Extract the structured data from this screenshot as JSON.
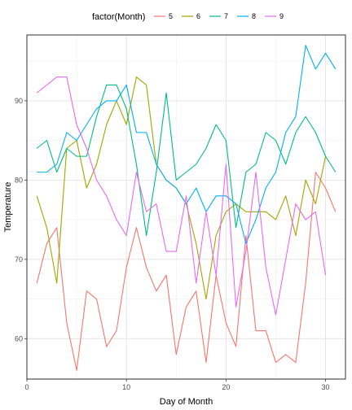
{
  "chart_data": {
    "type": "line",
    "xlabel": "Day of Month",
    "ylabel": "Temperature",
    "xlim": [
      0,
      32
    ],
    "ylim": [
      54.9,
      98.3
    ],
    "x_ticks": [
      0,
      10,
      20,
      30
    ],
    "y_ticks": [
      60,
      70,
      80,
      90
    ],
    "grid": true,
    "legend": {
      "title": "factor(Month)",
      "position": "top"
    },
    "series": [
      {
        "name": "5",
        "color": "#F8766D",
        "x": [
          1,
          2,
          3,
          4,
          5,
          6,
          7,
          8,
          9,
          10,
          11,
          12,
          13,
          14,
          15,
          16,
          17,
          18,
          19,
          20,
          21,
          22,
          23,
          24,
          25,
          26,
          27,
          28,
          29,
          30,
          31
        ],
        "values": [
          67,
          72,
          74,
          62,
          56,
          66,
          65,
          59,
          61,
          69,
          74,
          69,
          66,
          68,
          58,
          64,
          66,
          57,
          68,
          62,
          59,
          73,
          61,
          61,
          57,
          58,
          57,
          67,
          81,
          79,
          76
        ]
      },
      {
        "name": "6",
        "color": "#A3A500",
        "x": [
          1,
          2,
          3,
          4,
          5,
          6,
          7,
          8,
          9,
          10,
          11,
          12,
          13,
          14,
          15,
          16,
          17,
          18,
          19,
          20,
          21,
          22,
          23,
          24,
          25,
          26,
          27,
          28,
          29,
          30
        ],
        "values": [
          78,
          74,
          67,
          84,
          85,
          79,
          82,
          87,
          90,
          87,
          93,
          92,
          82,
          80,
          79,
          77,
          72,
          65,
          73,
          76,
          77,
          76,
          76,
          76,
          75,
          78,
          73,
          80,
          77,
          83
        ]
      },
      {
        "name": "7",
        "color": "#00BF7D",
        "x": [
          1,
          2,
          3,
          4,
          5,
          6,
          7,
          8,
          9,
          10,
          11,
          12,
          13,
          14,
          15,
          16,
          17,
          18,
          19,
          20,
          21,
          22,
          23,
          24,
          25,
          26,
          27,
          28,
          29,
          30,
          31
        ],
        "values": [
          84,
          85,
          81,
          84,
          83,
          83,
          88,
          92,
          92,
          89,
          82,
          73,
          81,
          91,
          80,
          81,
          82,
          84,
          87,
          85,
          74,
          81,
          82,
          86,
          85,
          82,
          86,
          88,
          86,
          83,
          81
        ]
      },
      {
        "name": "8",
        "color": "#00B0F6",
        "x": [
          1,
          2,
          3,
          4,
          5,
          6,
          7,
          8,
          9,
          10,
          11,
          12,
          13,
          14,
          15,
          16,
          17,
          18,
          19,
          20,
          21,
          22,
          23,
          24,
          25,
          26,
          27,
          28,
          29,
          30,
          31
        ],
        "values": [
          81,
          81,
          82,
          86,
          85,
          87,
          89,
          90,
          90,
          92,
          86,
          86,
          82,
          80,
          79,
          77,
          79,
          76,
          78,
          78,
          77,
          72,
          75,
          79,
          81,
          86,
          88,
          97,
          94,
          96,
          94
        ]
      },
      {
        "name": "9",
        "color": "#E76BF3",
        "x": [
          1,
          2,
          3,
          4,
          5,
          6,
          7,
          8,
          9,
          10,
          11,
          12,
          13,
          14,
          15,
          16,
          17,
          18,
          19,
          20,
          21,
          22,
          23,
          24,
          25,
          26,
          27,
          28,
          29,
          30
        ],
        "values": [
          91,
          92,
          93,
          93,
          87,
          84,
          80,
          78,
          75,
          73,
          81,
          76,
          77,
          71,
          71,
          78,
          67,
          76,
          68,
          82,
          64,
          71,
          81,
          69,
          63,
          70,
          77,
          75,
          76,
          68
        ]
      }
    ]
  }
}
